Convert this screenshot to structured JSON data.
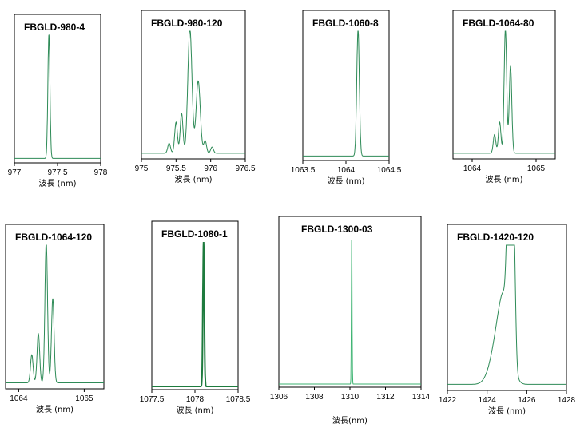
{
  "chart_data": [
    {
      "type": "line",
      "title": "FBGLD-980-4",
      "xlabel": "波長 (nm)",
      "xlim": [
        977,
        978
      ],
      "xticks": [
        "977",
        "977.5",
        "978"
      ],
      "series": [
        {
          "name": "spectrum",
          "color": "#2e8b57",
          "peaks": [
            [
              977.4,
              1.0,
              0.012
            ]
          ],
          "floor": 0.01
        }
      ]
    },
    {
      "type": "line",
      "title": "FBGLD-980-120",
      "xlabel": "波長 (nm)",
      "xlim": [
        975,
        976.5
      ],
      "xticks": [
        "975",
        "975.5",
        "976",
        "976.5"
      ],
      "series": [
        {
          "name": "spectrum",
          "color": "#2e8b57",
          "peaks": [
            [
              975.4,
              0.08,
              0.02
            ],
            [
              975.5,
              0.25,
              0.02
            ],
            [
              975.58,
              0.32,
              0.02
            ],
            [
              975.7,
              1.0,
              0.03
            ],
            [
              975.82,
              0.58,
              0.03
            ],
            [
              975.92,
              0.1,
              0.02
            ],
            [
              976.02,
              0.05,
              0.02
            ]
          ],
          "floor": 0.02
        }
      ]
    },
    {
      "type": "line",
      "title": "FBGLD-1060-8",
      "xlabel": "波長 (nm)",
      "xlim": [
        1063.5,
        1064.5
      ],
      "xticks": [
        "1063.5",
        "1064",
        "1064.5"
      ],
      "series": [
        {
          "name": "spectrum",
          "color": "#2e8b57",
          "peaks": [
            [
              1064.14,
              1.0,
              0.015
            ]
          ],
          "floor": 0.01
        }
      ]
    },
    {
      "type": "line",
      "title": "FBGLD-1064-80",
      "xlabel": "波長 (nm)",
      "xlim": [
        1063.7,
        1065.3
      ],
      "xticks": [
        "1064",
        "1065"
      ],
      "xtickvals": [
        1064,
        1065
      ],
      "series": [
        {
          "name": "spectrum",
          "color": "#2e8b57",
          "peaks": [
            [
              1064.35,
              0.15,
              0.02
            ],
            [
              1064.43,
              0.25,
              0.02
            ],
            [
              1064.52,
              1.0,
              0.02
            ],
            [
              1064.6,
              0.7,
              0.02
            ]
          ],
          "floor": 0.02
        }
      ]
    },
    {
      "type": "line",
      "title": "FBGLD-1064-120",
      "xlabel": "波長 (nm)",
      "xlim": [
        1063.8,
        1065.3
      ],
      "xticks": [
        "1064",
        "1065"
      ],
      "xtickvals": [
        1064,
        1065
      ],
      "series": [
        {
          "name": "spectrum",
          "color": "#2e8b57",
          "peaks": [
            [
              1064.2,
              0.2,
              0.02
            ],
            [
              1064.3,
              0.35,
              0.02
            ],
            [
              1064.42,
              1.0,
              0.02
            ],
            [
              1064.52,
              0.6,
              0.02
            ]
          ],
          "floor": 0.02
        }
      ]
    },
    {
      "type": "line",
      "title": "FBGLD-1080-1",
      "xlabel": "波長 (nm)",
      "xlim": [
        1077.5,
        1078.5
      ],
      "xticks": [
        "1077.5",
        "1078",
        "1078.5"
      ],
      "series": [
        {
          "name": "spectrum",
          "color": "#1e7b3e",
          "peaks": [
            [
              1078.1,
              1.0,
              0.008
            ]
          ],
          "floor": 0.0
        }
      ]
    },
    {
      "type": "line",
      "title": "FBGLD-1300-03",
      "xlabel": "波長(nm)",
      "xlim": [
        1306,
        1314
      ],
      "xticks": [
        "1306",
        "1308",
        "1310",
        "1312",
        "1314"
      ],
      "series": [
        {
          "name": "spectrum",
          "color": "#3cb371",
          "peaks": [
            [
              1310.1,
              1.0,
              0.02
            ]
          ],
          "floor": 0.0
        }
      ]
    },
    {
      "type": "line",
      "title": "FBGLD-1420-120",
      "xlabel": "波長 (nm)",
      "xlim": [
        1422,
        1428
      ],
      "xticks": [
        "1422",
        "1424",
        "1426",
        "1428"
      ],
      "series": [
        {
          "name": "spectrum",
          "color": "#2e8b57",
          "peaks": [
            [
              1424.5,
              0.25,
              0.35
            ],
            [
              1424.9,
              0.5,
              0.3
            ],
            [
              1425.2,
              1.0,
              0.08
            ],
            [
              1425.35,
              0.9,
              0.08
            ],
            [
              1425.05,
              0.7,
              0.08
            ]
          ],
          "floor": 0.02
        }
      ]
    }
  ]
}
